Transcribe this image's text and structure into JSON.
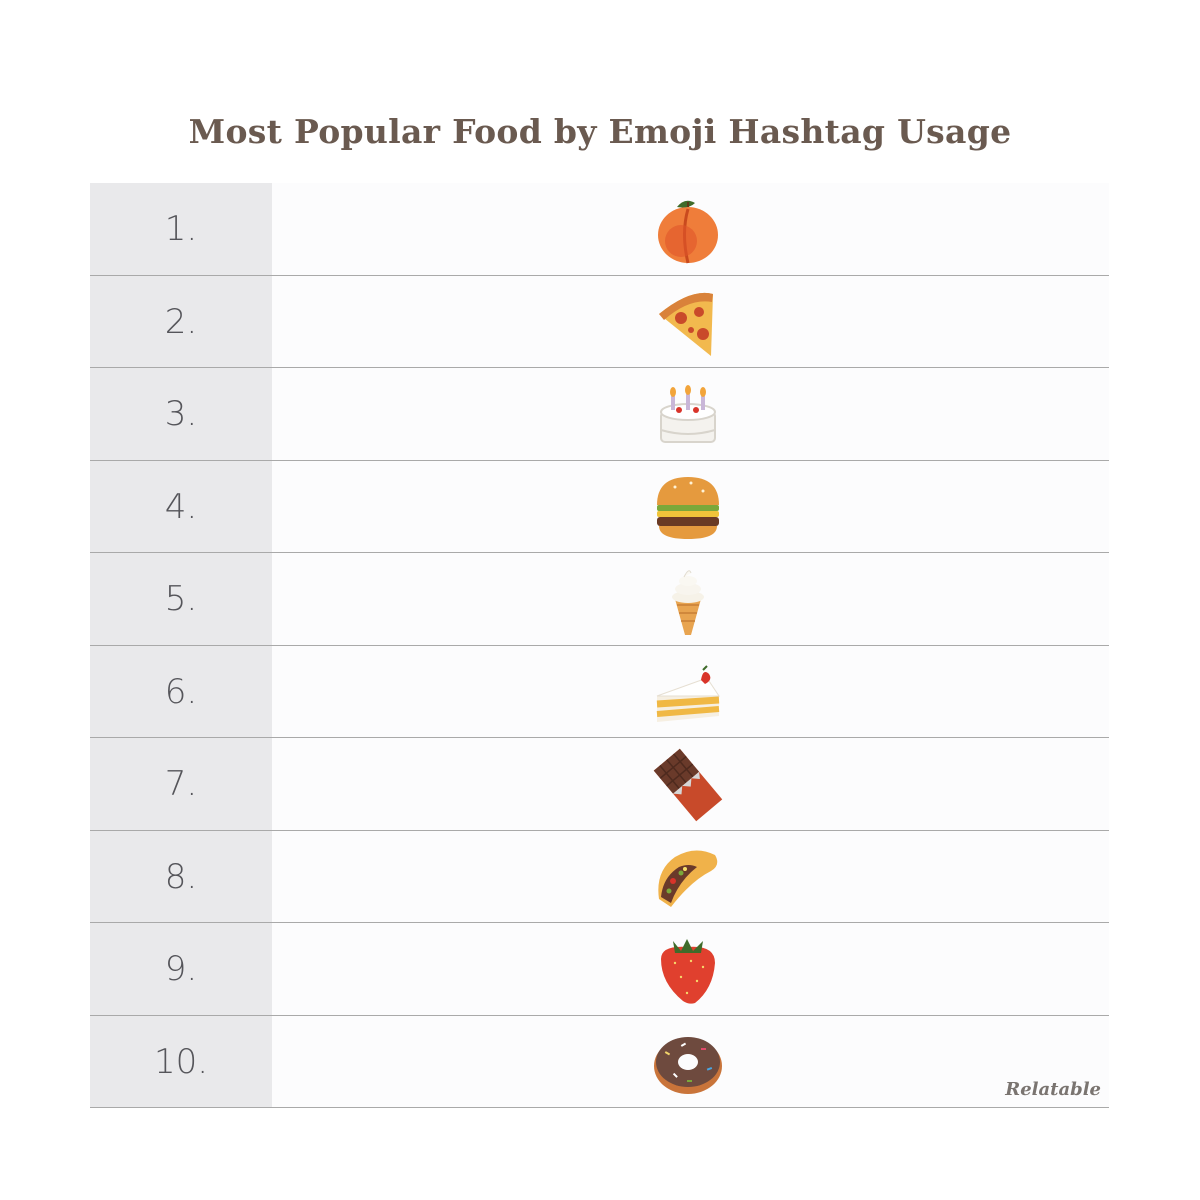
{
  "title": "Most Popular Food by Emoji Hashtag Usage",
  "rows": [
    {
      "rank": "1.",
      "icon": "peach-icon"
    },
    {
      "rank": "2.",
      "icon": "pizza-icon"
    },
    {
      "rank": "3.",
      "icon": "birthday-cake-icon"
    },
    {
      "rank": "4.",
      "icon": "hamburger-icon"
    },
    {
      "rank": "5.",
      "icon": "soft-ice-cream-icon"
    },
    {
      "rank": "6.",
      "icon": "shortcake-icon"
    },
    {
      "rank": "7.",
      "icon": "chocolate-bar-icon"
    },
    {
      "rank": "8.",
      "icon": "taco-icon"
    },
    {
      "rank": "9.",
      "icon": "strawberry-icon"
    },
    {
      "rank": "10.",
      "icon": "doughnut-icon"
    }
  ],
  "brand": "Relatable"
}
